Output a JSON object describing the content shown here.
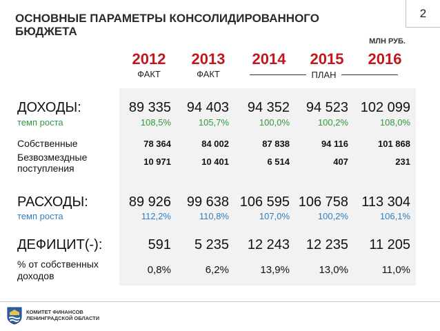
{
  "title": "ОСНОВНЫЕ ПАРАМЕТРЫ КОНСОЛИДИРОВАННОГО БЮДЖЕТА",
  "page_number": "2",
  "units": "МЛН РУБ.",
  "years": [
    "2012",
    "2013",
    "2014",
    "2015",
    "2016"
  ],
  "fact_labels": [
    "ФАКТ",
    "ФАКТ"
  ],
  "plan_label": "ПЛАН",
  "rows": {
    "income": {
      "label": "ДОХОДЫ:",
      "values": [
        "89 335",
        "94 403",
        "94 352",
        "94 523",
        "102 099"
      ]
    },
    "income_growth": {
      "label": "темп роста",
      "values": [
        "108,5%",
        "105,7%",
        "100,0%",
        "100,2%",
        "108,0%"
      ]
    },
    "own": {
      "label": "Собственные",
      "values": [
        "78 364",
        "84 002",
        "87 838",
        "94 116",
        "101 868"
      ]
    },
    "grants": {
      "label_line1": "Безвозмездные",
      "label_line2": "поступления",
      "values": [
        "10 971",
        "10 401",
        "6 514",
        "407",
        "231"
      ]
    },
    "expenses": {
      "label": "РАСХОДЫ:",
      "values": [
        "89 926",
        "99 638",
        "106 595",
        "106 758",
        "113 304"
      ]
    },
    "expenses_growth": {
      "label": "темп роста",
      "values": [
        "112,2%",
        "110,8%",
        "107,0%",
        "100,2%",
        "106,1%"
      ]
    },
    "deficit": {
      "label": "ДЕФИЦИТ(-):",
      "values": [
        "591",
        "5 235",
        "12 243",
        "12 235",
        "11 205"
      ]
    },
    "deficit_pct": {
      "label_line1": "% от собственных",
      "label_line2": "доходов",
      "values": [
        "0,8%",
        "6,2%",
        "13,9%",
        "13,0%",
        "11,0%"
      ]
    }
  },
  "footer": {
    "org_line1": "КОМИТЕТ ФИНАНСОВ",
    "org_line2": "ЛЕНИНГРАДСКОЙ ОБЛАСТИ"
  },
  "colors": {
    "year": "#c0171c",
    "growth_income": "#2e9a3c",
    "growth_expenses": "#2f7fc0",
    "panel": "#f2f2f2"
  }
}
